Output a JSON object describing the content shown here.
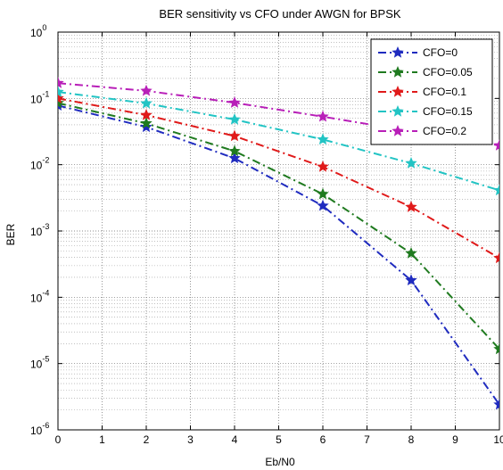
{
  "chart_data": {
    "type": "line",
    "title": "BER sensitivity vs CFO under AWGN for BPSK",
    "xlabel": "Eb/N0",
    "ylabel": "BER",
    "xlim": [
      0,
      10
    ],
    "ylim": [
      1e-06,
      1
    ],
    "yscale": "log",
    "grid": "major and minor, dotted",
    "legend_position": "top-right",
    "x_ticks": [
      "0",
      "1",
      "2",
      "3",
      "4",
      "5",
      "6",
      "7",
      "8",
      "9",
      "10"
    ],
    "y_ticks": [
      {
        "base": "10",
        "exp": "0",
        "value": 1
      },
      {
        "base": "10",
        "exp": "-1",
        "value": 0.1
      },
      {
        "base": "10",
        "exp": "-2",
        "value": 0.01
      },
      {
        "base": "10",
        "exp": "-3",
        "value": 0.001
      },
      {
        "base": "10",
        "exp": "-4",
        "value": 0.0001
      },
      {
        "base": "10",
        "exp": "-5",
        "value": 1e-05
      },
      {
        "base": "10",
        "exp": "-6",
        "value": 1e-06
      }
    ],
    "x": [
      0,
      2,
      4,
      6,
      8,
      10
    ],
    "series": [
      {
        "name": "CFO=0",
        "color": "#1f2bbf",
        "values": [
          0.078,
          0.037,
          0.0125,
          0.0024,
          0.00018,
          2.4e-06
        ]
      },
      {
        "name": "CFO=0.05",
        "color": "#1f7a1f",
        "values": [
          0.085,
          0.042,
          0.016,
          0.0036,
          0.00046,
          1.65e-05
        ]
      },
      {
        "name": "CFO=0.1",
        "color": "#e01a1a",
        "values": [
          0.1,
          0.056,
          0.027,
          0.0093,
          0.0023,
          0.00039
        ]
      },
      {
        "name": "CFO=0.15",
        "color": "#22c4c4",
        "values": [
          0.125,
          0.084,
          0.048,
          0.024,
          0.0105,
          0.0041
        ]
      },
      {
        "name": "CFO=0.2",
        "color": "#b81fb8",
        "values": [
          0.17,
          0.13,
          0.086,
          0.053,
          0.032,
          0.0195
        ]
      }
    ]
  }
}
